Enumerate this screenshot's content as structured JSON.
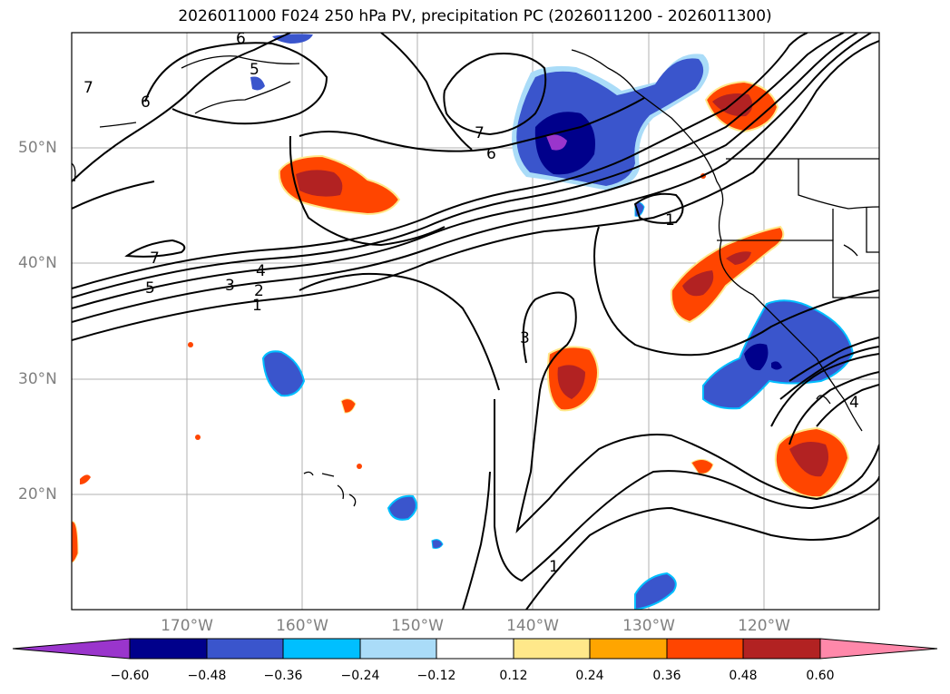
{
  "title": "2026011000 F024 250 hPa PV, precipitation PC (2026011200 - 2026011300)",
  "lat_labels": [
    "50°N",
    "40°N",
    "30°N",
    "20°N"
  ],
  "lon_labels": [
    "170°W",
    "160°W",
    "150°W",
    "140°W",
    "130°W",
    "120°W"
  ],
  "contour_labels": [
    "1",
    "2",
    "3",
    "4",
    "5",
    "6",
    "7"
  ],
  "colorbar": {
    "ticks": [
      "−0.60",
      "−0.48",
      "−0.36",
      "−0.24",
      "−0.12",
      "0.12",
      "0.24",
      "0.36",
      "0.48",
      "0.60"
    ],
    "colors": [
      "#9a35cc",
      "#00008b",
      "#3a55cc",
      "#00bfff",
      "#aadcf8",
      "#ffffff",
      "#ffe88a",
      "#ffa500",
      "#ff4500",
      "#b22222",
      "#ff88aa"
    ]
  },
  "contour_label_text": {
    "c1a": "1",
    "c1b": "1",
    "c1c": "1",
    "c2": "2",
    "c3a": "3",
    "c3b": "3",
    "c4a": "4",
    "c4b": "4",
    "c5a": "5",
    "c5b": "5",
    "c6a": "6",
    "c6b": "6",
    "c6c": "6",
    "c7a": "7",
    "c7b": "7",
    "c7c": "7"
  }
}
